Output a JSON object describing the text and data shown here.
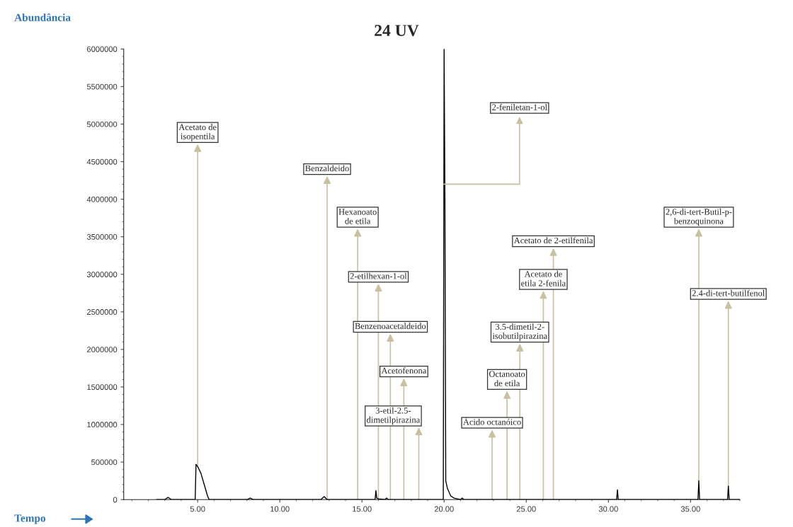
{
  "chart_data": {
    "type": "line",
    "title": "24 UV",
    "ylabel": "Abundância",
    "xlabel": "Tempo",
    "series": [
      {
        "color": "#000000",
        "x": [
          2.5,
          3.0,
          3.2,
          3.4,
          4.8,
          4.85,
          4.9,
          5.0,
          5.2,
          5.4,
          5.6,
          5.7,
          8.0,
          8.2,
          8.4,
          12.5,
          12.7,
          12.88,
          14.74,
          15.8,
          15.85,
          15.9,
          16.0,
          16.4,
          16.5,
          16.6,
          16.73,
          17.55,
          18.46,
          19.9,
          19.95,
          20.0,
          20.05,
          20.1,
          20.2,
          20.4,
          20.6,
          21.0,
          21.1,
          21.2,
          22.92,
          23.83,
          24.61,
          26.04,
          26.65,
          30.5,
          30.55,
          30.6,
          35.45,
          35.5,
          35.55,
          37.25,
          37.3,
          37.35,
          38.0
        ],
        "values": [
          0,
          0,
          30000,
          0,
          0,
          0,
          470000,
          440000,
          350000,
          200000,
          50000,
          0,
          0,
          20000,
          0,
          0,
          40000,
          0,
          0,
          0,
          120000,
          20000,
          10000,
          0,
          20000,
          0,
          0,
          0,
          0,
          0,
          0,
          6000000,
          4000000,
          250000,
          150000,
          50000,
          20000,
          0,
          20000,
          0,
          0,
          0,
          0,
          0,
          0,
          0,
          130000,
          0,
          0,
          250000,
          0,
          0,
          180000,
          0,
          0
        ]
      }
    ],
    "xlim": [
      0.5,
      38.0
    ],
    "xticks": [
      {
        "value": 5,
        "label": "5.00"
      },
      {
        "value": 10,
        "label": "10.00"
      },
      {
        "value": 15,
        "label": "15.00"
      },
      {
        "value": 20,
        "label": "20.00"
      },
      {
        "value": 25,
        "label": "25.00"
      },
      {
        "value": 30,
        "label": "30.00"
      },
      {
        "value": 35,
        "label": "35.00"
      }
    ],
    "ylim": [
      0,
      6000000
    ],
    "yticks": [
      0,
      500000,
      1000000,
      1500000,
      2000000,
      2500000,
      3000000,
      3500000,
      4000000,
      4500000,
      5000000,
      5500000,
      6000000
    ],
    "grid": false,
    "legend": false,
    "marker": "none",
    "line_style": "solid",
    "annotations": [
      {
        "text": "Acetato de\nisopentila",
        "x": 5.0,
        "y": 440000
      },
      {
        "text": "Benzaldeido",
        "x": 12.88,
        "y": 0
      },
      {
        "text": "Hexanoato\nde etila",
        "x": 14.74,
        "y": 0
      },
      {
        "text": "2-etilhexan-1-ol",
        "x": 16.0,
        "y": 10000
      },
      {
        "text": "Benzenoacetaldeido",
        "x": 16.73,
        "y": 0
      },
      {
        "text": "Acetofenona",
        "x": 17.55,
        "y": 0
      },
      {
        "text": "3-etil-2.5-\ndimetilpirazina",
        "x": 18.46,
        "y": 0
      },
      {
        "text": "2-feniletan-1-ol",
        "x": 19.985,
        "y": 4200000
      },
      {
        "text": "Ácido octanóico",
        "x": 22.92,
        "y": 0
      },
      {
        "text": "Octanoato\nde etila",
        "x": 23.83,
        "y": 0
      },
      {
        "text": "3.5-dimetil-2-\nisobutilpirazina",
        "x": 24.61,
        "y": 0
      },
      {
        "text": "Acetato de\netila 2-fenila",
        "x": 26.04,
        "y": 0
      },
      {
        "text": "Acetato de 2-etilfenila",
        "x": 26.65,
        "y": 0
      },
      {
        "text": "2,6-di-tert-Butil-p-\nbenzoquinona",
        "x": 35.5,
        "y": 250000
      },
      {
        "text": "2.4-di-tert-butilfenol",
        "x": 37.3,
        "y": 180000
      }
    ]
  }
}
